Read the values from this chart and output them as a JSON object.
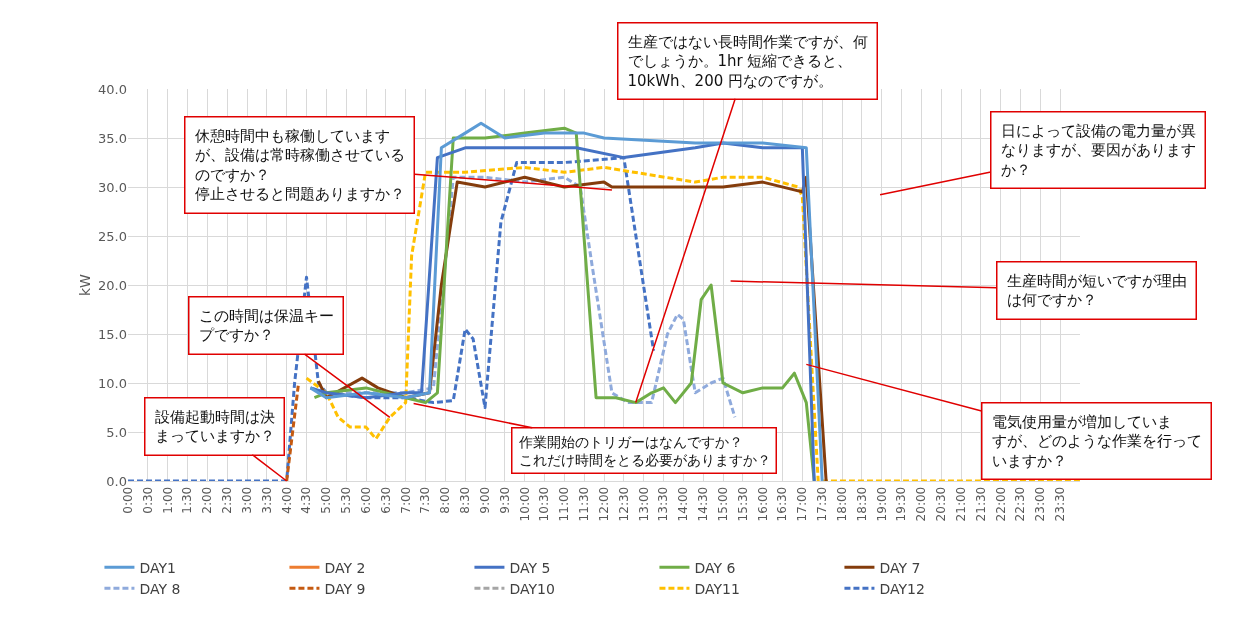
{
  "chart_data": {
    "type": "line",
    "ylabel": "kW",
    "ylim": [
      0,
      40
    ],
    "yticks": [
      {
        "value": 0,
        "label": "0.0"
      },
      {
        "value": 5,
        "label": "5.0"
      },
      {
        "value": 10,
        "label": "10.0"
      },
      {
        "value": 15,
        "label": "15.0"
      },
      {
        "value": 20,
        "label": "20.0"
      },
      {
        "value": 25,
        "label": "25.0"
      },
      {
        "value": 30,
        "label": "30.0"
      },
      {
        "value": 35,
        "label": "35.0"
      },
      {
        "value": 40,
        "label": "40.0"
      }
    ],
    "xlim": [
      0,
      24
    ],
    "xticks": [
      {
        "value": 0,
        "label": "0:00"
      },
      {
        "value": 0.5,
        "label": "0:30"
      },
      {
        "value": 1,
        "label": "1:00"
      },
      {
        "value": 1.5,
        "label": "1:30"
      },
      {
        "value": 2,
        "label": "2:00"
      },
      {
        "value": 2.5,
        "label": "2:30"
      },
      {
        "value": 3,
        "label": "3:00"
      },
      {
        "value": 3.5,
        "label": "3:30"
      },
      {
        "value": 4,
        "label": "4:00"
      },
      {
        "value": 4.5,
        "label": "4:30"
      },
      {
        "value": 5,
        "label": "5:00"
      },
      {
        "value": 5.5,
        "label": "5:30"
      },
      {
        "value": 6,
        "label": "6:00"
      },
      {
        "value": 6.5,
        "label": "6:30"
      },
      {
        "value": 7,
        "label": "7:00"
      },
      {
        "value": 7.5,
        "label": "7:30"
      },
      {
        "value": 8,
        "label": "8:00"
      },
      {
        "value": 8.5,
        "label": "8:30"
      },
      {
        "value": 9,
        "label": "9:00"
      },
      {
        "value": 9.5,
        "label": "9:30"
      },
      {
        "value": 10,
        "label": "10:00"
      },
      {
        "value": 10.5,
        "label": "10:30"
      },
      {
        "value": 11,
        "label": "11:00"
      },
      {
        "value": 11.5,
        "label": "11:30"
      },
      {
        "value": 12,
        "label": "12:00"
      },
      {
        "value": 12.5,
        "label": "12:30"
      },
      {
        "value": 13,
        "label": "13:00"
      },
      {
        "value": 13.5,
        "label": "13:30"
      },
      {
        "value": 14,
        "label": "14:00"
      },
      {
        "value": 14.5,
        "label": "14:30"
      },
      {
        "value": 15,
        "label": "15:00"
      },
      {
        "value": 15.5,
        "label": "15:30"
      },
      {
        "value": 16,
        "label": "16:00"
      },
      {
        "value": 16.5,
        "label": "16:30"
      },
      {
        "value": 17,
        "label": "17:00"
      },
      {
        "value": 17.5,
        "label": "17:30"
      },
      {
        "value": 18,
        "label": "18:00"
      },
      {
        "value": 18.5,
        "label": "18:30"
      },
      {
        "value": 19,
        "label": "19:00"
      },
      {
        "value": 19.5,
        "label": "19:30"
      },
      {
        "value": 20,
        "label": "20:00"
      },
      {
        "value": 20.5,
        "label": "20:30"
      },
      {
        "value": 21,
        "label": "21:00"
      },
      {
        "value": 21.5,
        "label": "21:30"
      },
      {
        "value": 22,
        "label": "22:00"
      },
      {
        "value": 22.5,
        "label": "22:30"
      },
      {
        "value": 23,
        "label": "23:00"
      },
      {
        "value": 23.5,
        "label": "23:30"
      }
    ],
    "grid": true,
    "legend": "bottom",
    "marker": "none",
    "series": [
      {
        "name": "DAY1",
        "color": "#5b9bd5",
        "line_style": "solid",
        "x": [
          4.6,
          5,
          6,
          7,
          7.6,
          7.9,
          8.5,
          8.9,
          9.5,
          10.5,
          11.5,
          12.0,
          14.3,
          15,
          16,
          17.1,
          17.5
        ],
        "values": [
          9.5,
          8.5,
          9,
          8.5,
          9,
          34,
          35.5,
          36.5,
          35,
          35.5,
          35.5,
          35,
          34.5,
          34.5,
          34.5,
          34,
          0
        ]
      },
      {
        "name": "DAY 2",
        "color": "#ed7d31",
        "line_style": "solid"
      },
      {
        "name": "DAY 5",
        "color": "#4472c4",
        "line_style": "solid",
        "x": [
          4.6,
          5,
          6,
          7,
          7.4,
          7.8,
          8.5,
          10,
          11.3,
          12.5,
          14.3,
          15,
          16,
          17.0,
          17.3
        ],
        "values": [
          9.5,
          9,
          8.5,
          9,
          9,
          33,
          34,
          34,
          34,
          33,
          34,
          34.5,
          34,
          34,
          0
        ]
      },
      {
        "name": "DAY 6",
        "color": "#70ad47",
        "line_style": "solid",
        "x": [
          4.7,
          5,
          6,
          7,
          7.5,
          7.8,
          8.2,
          9,
          10,
          11.0,
          11.3,
          11.8,
          12.3,
          12.8,
          13.2,
          13.5,
          13.8,
          14.2,
          14.45,
          14.7,
          15.0,
          15.5,
          16.0,
          16.5,
          16.8,
          17.1,
          17.3
        ],
        "values": [
          8.5,
          9,
          9.5,
          8.5,
          8,
          9,
          35,
          35,
          35.5,
          36,
          35.5,
          8.5,
          8.5,
          8,
          9,
          9.5,
          8,
          10,
          18.5,
          20,
          10,
          9,
          9.5,
          9.5,
          11,
          8,
          0
        ]
      },
      {
        "name": "DAY 7",
        "color": "#843c0c",
        "line_style": "solid",
        "x": [
          4.8,
          5,
          5.9,
          6.3,
          7,
          7.6,
          7.9,
          8.3,
          9,
          10,
          11,
          12,
          12.2,
          14.3,
          15,
          16,
          17.0,
          17.1,
          17.6
        ],
        "values": [
          10.2,
          8.5,
          10.5,
          9.5,
          8.5,
          9,
          20,
          30.5,
          30,
          31,
          30,
          30.5,
          30,
          30,
          30,
          30.5,
          29.5,
          31,
          0
        ]
      },
      {
        "name": "DAY 8",
        "color": "#8faadc",
        "line_style": "dashed",
        "x": [
          4.6,
          5,
          6,
          7,
          7.7,
          8.2,
          9,
          10,
          11,
          11.4,
          11.7,
          12.2,
          12.6,
          13.2,
          13.6,
          13.85,
          14.0,
          14.3,
          14.7,
          15.0,
          15.3
        ],
        "values": [
          9.5,
          9,
          9,
          9,
          9.5,
          31,
          31,
          30.5,
          31,
          30,
          22,
          9,
          8,
          8,
          15,
          17,
          16.5,
          9,
          10,
          10.5,
          6.5
        ]
      },
      {
        "name": "DAY 9",
        "color": "#c55a11",
        "line_style": "dashed",
        "x": [
          4,
          4.3
        ],
        "values": [
          0,
          10
        ]
      },
      {
        "name": "DAY10",
        "color": "#a5a5a5",
        "line_style": "dashed"
      },
      {
        "name": "DAY11",
        "color": "#ffc000",
        "line_style": "dashed",
        "x": [
          4.5,
          5,
          5.3,
          5.6,
          6,
          6.25,
          6.6,
          7.0,
          7.15,
          7.5,
          8.5,
          10,
          11,
          12,
          14.3,
          15,
          16,
          16.9,
          17.0,
          17.4,
          24
        ],
        "values": [
          10.5,
          9,
          6.5,
          5.5,
          5.5,
          4.3,
          6.5,
          8,
          23,
          31.5,
          31.5,
          32,
          31.5,
          32,
          30.5,
          31,
          31,
          30,
          29,
          0,
          0
        ]
      },
      {
        "name": "DAY12",
        "color": "#4472c4",
        "line_style": "dashed",
        "x": [
          0,
          4.0,
          4.2,
          4.5,
          4.8,
          5,
          6,
          7,
          7.7,
          8.2,
          8.5,
          8.7,
          9.0,
          9.4,
          9.8,
          11,
          12.5,
          13.25
        ],
        "values": [
          0,
          0,
          10,
          20.8,
          10,
          9,
          8.5,
          8.5,
          8,
          8.2,
          15.5,
          14.5,
          7.5,
          26.4,
          32.5,
          32.5,
          33,
          13.3
        ]
      }
    ],
    "annotations": [
      {
        "text": "設備起動時間は決まっていますか？",
        "x": 4.0,
        "y": 0
      },
      {
        "text": "この時間は保温キープですか？",
        "x": 6.6,
        "y": 6.5
      },
      {
        "text": "休憩時間中も稼働していますが、設備は常時稼働させているのですか？停止させると問題ありますか？",
        "x": 12.2,
        "y": 29.7
      },
      {
        "text": "生産ではない長時間作業ですが、何でしょうか。1hr 短縮できると、10kWh、200 円なのですが。",
        "x": 12.8,
        "y": 8
      },
      "日によって設備の電力量が異なりますが、要因がありますか？",
      "生産時間が短いですが理由は何ですか？",
      {
        "text": "電気使用量が増加していますが、どのような作業を行っていますか？",
        "x": 17.1,
        "y": 11.9
      },
      {
        "text": "作業開始のトリガーはなんですか？これだけ時間をとる必要がありますか？",
        "x": 7.2,
        "y": 7.9
      }
    ]
  }
}
